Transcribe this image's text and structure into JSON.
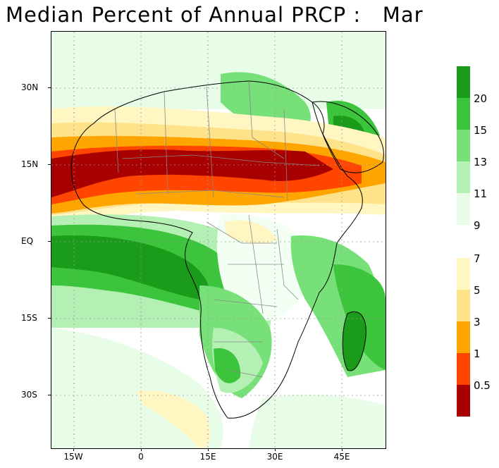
{
  "title": "Median Percent of Annual PRCP :   Mar",
  "axes": {
    "lat_labels": [
      {
        "text": "30N",
        "lat": 30
      },
      {
        "text": "15N",
        "lat": 15
      },
      {
        "text": "EQ",
        "lat": 0
      },
      {
        "text": "15S",
        "lat": -15
      },
      {
        "text": "30S",
        "lat": -30
      }
    ],
    "lon_labels": [
      {
        "text": "15W",
        "lon": -15
      },
      {
        "text": "0",
        "lon": 0
      },
      {
        "text": "15E",
        "lon": 15
      },
      {
        "text": "30E",
        "lon": 30
      },
      {
        "text": "45E",
        "lon": 45
      }
    ],
    "lon_range": [
      -20,
      55
    ],
    "lat_range": [
      -40,
      40
    ]
  },
  "legend_upper": [
    {
      "label": "20",
      "color": "#1a9c1a"
    },
    {
      "label": "15",
      "color": "#3dc43d"
    },
    {
      "label": "13",
      "color": "#78e078"
    },
    {
      "label": "11",
      "color": "#b4f0b4"
    },
    {
      "label": "9",
      "color": "#e8fde8"
    }
  ],
  "legend_upper_top_color": "#1a9c1a",
  "legend_lower": [
    {
      "label": "7",
      "color": "#fff6c2"
    },
    {
      "label": "5",
      "color": "#ffe38a"
    },
    {
      "label": "3",
      "color": "#ffa500"
    },
    {
      "label": "1",
      "color": "#ff4500"
    },
    {
      "label": "0.5",
      "color": "#a80000"
    }
  ],
  "map_regions": [
    {
      "name": "sahel-red",
      "color": "#a80000"
    },
    {
      "name": "sahel-orange-red",
      "color": "#ff4500"
    },
    {
      "name": "sahel-orange",
      "color": "#ffa500"
    },
    {
      "name": "sahel-yellow",
      "color": "#ffe38a"
    },
    {
      "name": "atlantic-green",
      "color": "#1a9c1a"
    },
    {
      "name": "indian-ocean-green",
      "color": "#3dc43d"
    }
  ]
}
